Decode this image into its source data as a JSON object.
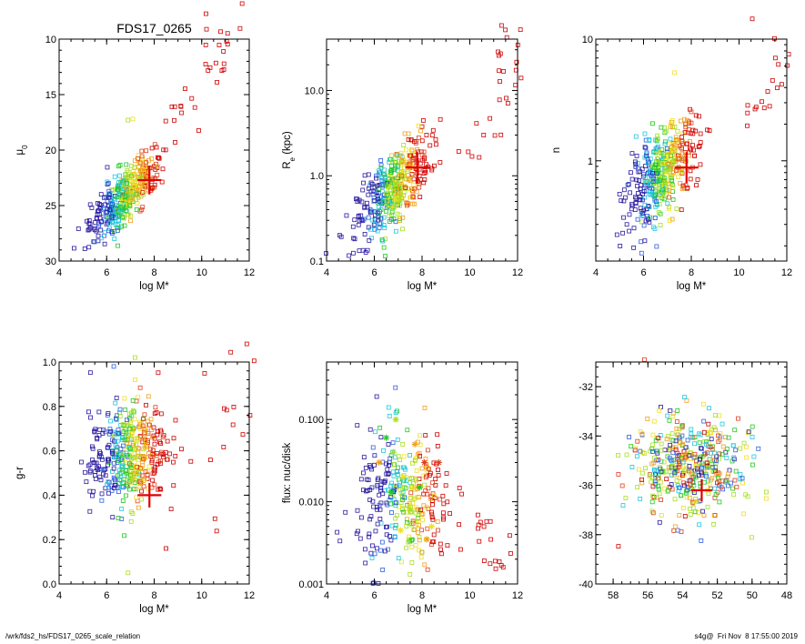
{
  "figure_title": "FDS17_0265",
  "footer": {
    "path": "/wrk/fds2_hs/FDS17_0265_scale_relation",
    "stamp": "s4g@  Fri Nov  8 17:55:00 2019"
  },
  "colors": {
    "marker_red": "#e00000",
    "axis": "#000000",
    "palette": [
      "#2a1aa0",
      "#2f5fe0",
      "#20c8e0",
      "#22c822",
      "#a8e020",
      "#f0e020",
      "#f0a020",
      "#e04020",
      "#d00000"
    ]
  },
  "chart_data": [
    {
      "id": "mu0",
      "type": "scatter",
      "xlabel": "log M*",
      "ylabel_main": "μ",
      "ylabel_sub": "0",
      "xlim": [
        4,
        12
      ],
      "ylim": [
        30,
        10
      ],
      "yscale": "linear",
      "xticks": [
        4,
        6,
        8,
        10,
        12
      ],
      "xticklabels": [
        "4",
        "6",
        "8",
        "10",
        "12"
      ],
      "yticks": [
        10,
        15,
        20,
        25,
        30
      ],
      "yticklabels": [
        "10",
        "15",
        "20",
        "25",
        "30"
      ],
      "gen": {
        "center": [
          6.8,
          24.0
        ],
        "sx": 0.75,
        "sy": 1.2,
        "slope": -2.1,
        "n": 420,
        "tail": [
          [
            9.2,
            16.5
          ],
          [
            10.5,
            11.5
          ],
          [
            11.2,
            10.0
          ]
        ],
        "outliers": [
          [
            11.7,
            6.8
          ],
          [
            7.1,
            17.2
          ],
          [
            6.9,
            17.3
          ],
          [
            6.0,
            25.6
          ],
          [
            6.6,
            25.2
          ]
        ]
      },
      "highlight": {
        "x": 7.8,
        "y": 22.7,
        "dx": 0.5,
        "dy": 1.3
      }
    },
    {
      "id": "re",
      "type": "scatter",
      "xlabel": "log M*",
      "ylabel_main": "R",
      "ylabel_sub": "e",
      "ylabel_rest": " (kpc)",
      "xlim": [
        4,
        12
      ],
      "ylim": [
        0.1,
        40
      ],
      "yscale": "log",
      "xticks": [
        4,
        6,
        8,
        10,
        12
      ],
      "xticklabels": [
        "4",
        "6",
        "8",
        "10",
        "12"
      ],
      "yticks": [
        0.1,
        1.0,
        10.0
      ],
      "yticklabels": [
        "0.1",
        "1.0",
        "10.0"
      ],
      "gen": {
        "center": [
          6.8,
          0.7
        ],
        "sx": 0.75,
        "sy": 0.22,
        "slope": 0.28,
        "n": 420,
        "tail": [
          [
            10.5,
            3.5
          ],
          [
            11.4,
            12.0
          ],
          [
            11.6,
            30.0
          ]
        ],
        "outliers": []
      },
      "highlight": {
        "x": 7.8,
        "y": 1.25,
        "dx": 0.5,
        "dy": 0.08
      }
    },
    {
      "id": "n",
      "type": "scatter",
      "xlabel": "log M*",
      "ylabel_main": "n",
      "xlim": [
        4,
        12
      ],
      "ylim": [
        0.15,
        10
      ],
      "yscale": "log",
      "xticks": [
        4,
        6,
        8,
        10,
        12
      ],
      "xticklabels": [
        "4",
        "6",
        "8",
        "10",
        "12"
      ],
      "yticks": [
        1,
        10
      ],
      "yticklabels": [
        "1",
        "10"
      ],
      "gen": {
        "center": [
          6.8,
          0.8
        ],
        "sx": 0.75,
        "sy": 0.17,
        "slope": 0.17,
        "n": 420,
        "tail": [
          [
            10.6,
            3.0
          ],
          [
            11.5,
            7.0
          ]
        ],
        "outliers": [
          [
            7.3,
            5.3
          ],
          [
            5.3,
            0.3
          ],
          [
            5.6,
            0.28
          ]
        ]
      },
      "highlight": {
        "x": 7.8,
        "y": 0.88,
        "dx": 0.5,
        "dy": 0.06
      }
    },
    {
      "id": "gr",
      "type": "scatter",
      "xlabel": "log M*",
      "ylabel_main": "g-r",
      "xlim": [
        4,
        12
      ],
      "ylim": [
        0,
        1
      ],
      "yscale": "linear",
      "xticks": [
        4,
        6,
        8,
        10,
        12
      ],
      "xticklabels": [
        "4",
        "6",
        "8",
        "10",
        "12"
      ],
      "yticks": [
        0.0,
        0.2,
        0.4,
        0.6,
        0.8,
        1.0
      ],
      "yticklabels": [
        "0.0",
        "0.2",
        "0.4",
        "0.6",
        "0.8",
        "1.0"
      ],
      "gen": {
        "center": [
          6.9,
          0.58
        ],
        "sx": 0.8,
        "sy": 0.12,
        "slope": 0.035,
        "n": 420,
        "tail": [
          [
            10.5,
            0.78
          ],
          [
            11.5,
            0.82
          ]
        ],
        "outliers": [
          [
            6.3,
            0.98
          ],
          [
            7.2,
            0.92
          ],
          [
            6.9,
            0.05
          ],
          [
            8.5,
            0.16
          ]
        ]
      },
      "highlight": {
        "x": 7.8,
        "y": 0.4,
        "dx": 0.5,
        "dy": 0.055
      }
    },
    {
      "id": "flux",
      "type": "scatter",
      "xlabel": "log M*",
      "ylabel_main": "flux: nuc/disk",
      "xlim": [
        4,
        12
      ],
      "ylim": [
        0.001,
        0.5
      ],
      "yscale": "log",
      "xticks": [
        4,
        6,
        8,
        10,
        12
      ],
      "xticklabels": [
        "4",
        "6",
        "8",
        "10",
        "12"
      ],
      "yticks": [
        0.001,
        0.01,
        0.1
      ],
      "yticklabels": [
        "0.001",
        "0.010",
        "0.100"
      ],
      "gen": {
        "center": [
          7.3,
          0.01
        ],
        "sx": 1.0,
        "sy": 0.42,
        "slope": 0.0,
        "n": 330,
        "tail": [
          [
            10.5,
            0.006
          ],
          [
            11.2,
            0.0025
          ]
        ],
        "outliers": [
          [
            6.1,
            0.19
          ],
          [
            6.6,
            0.14
          ]
        ]
      },
      "stars": [
        [
          6.5,
          0.06
        ],
        [
          6.8,
          0.04
        ],
        [
          7.2,
          0.02
        ],
        [
          7.7,
          0.05
        ],
        [
          8.1,
          0.03
        ],
        [
          6.7,
          0.013
        ],
        [
          7.5,
          0.008
        ],
        [
          8.4,
          0.005
        ],
        [
          6.2,
          0.03
        ],
        [
          8.7,
          0.03
        ],
        [
          7.9,
          0.015
        ],
        [
          6.9,
          0.1
        ],
        [
          7.1,
          0.0045
        ],
        [
          8.2,
          0.0035
        ]
      ],
      "highlight": null
    },
    {
      "id": "radec",
      "type": "scatter",
      "xlabel": "",
      "ylabel_main": "",
      "xlim": [
        59,
        48
      ],
      "ylim": [
        -40,
        -31
      ],
      "yscale": "linear",
      "xticks": [
        58,
        56,
        54,
        52,
        50,
        48
      ],
      "xticklabels": [
        "58",
        "56",
        "54",
        "52",
        "50",
        "48"
      ],
      "yticks": [
        -40,
        -38,
        -36,
        -34,
        -32
      ],
      "yticklabels": [
        "-40",
        "-38",
        "-36",
        "-34",
        "-32"
      ],
      "gen": {
        "center": [
          53.6,
          -35.3
        ],
        "sx": 1.6,
        "sy": 1.05,
        "slope": 0.0,
        "n": 430,
        "tail": [],
        "outliers": [
          [
            56.2,
            -30.9
          ]
        ]
      },
      "highlight": {
        "x": 52.9,
        "y": -36.2,
        "dx": 0.6,
        "dy": 0.45
      }
    }
  ]
}
